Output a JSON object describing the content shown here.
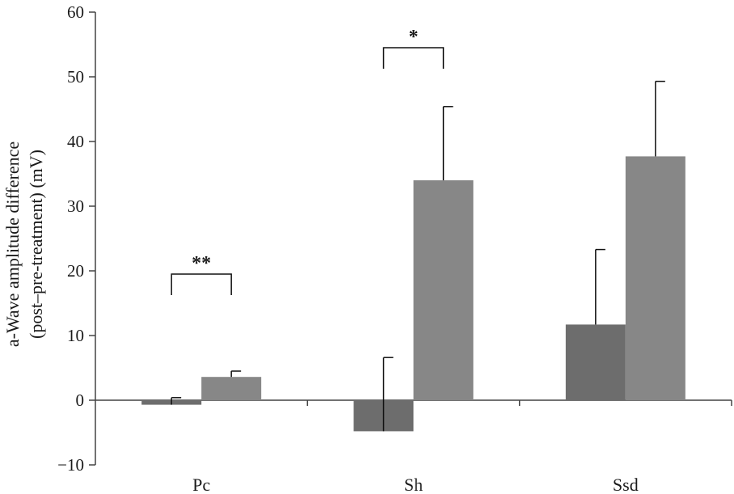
{
  "chart_data": {
    "type": "bar",
    "categories": [
      "Pc",
      "Sh",
      "Ssd"
    ],
    "series": [
      {
        "values": [
          -0.7,
          -4.8,
          11.7
        ],
        "errors": [
          1.1,
          11.4,
          11.6
        ],
        "color": "#6d6d6d"
      },
      {
        "values": [
          3.6,
          34.0,
          37.7
        ],
        "errors": [
          0.9,
          11.4,
          11.6
        ],
        "color": "#878787"
      }
    ],
    "ylabel_lines": [
      "a-Wave amplitude difference",
      "(post–pre-treatment) (mV)"
    ],
    "ylim": [
      -10,
      60
    ],
    "yticks": [
      60,
      50,
      40,
      30,
      20,
      10,
      0,
      -10
    ],
    "ytick_labels": [
      "60",
      "50",
      "40",
      "30",
      "20",
      "10",
      "0",
      "−10"
    ],
    "significance": [
      {
        "category": "Pc",
        "label": "**",
        "level": 19.5
      },
      {
        "category": "Sh",
        "label": "*",
        "level": 54.5
      }
    ]
  }
}
